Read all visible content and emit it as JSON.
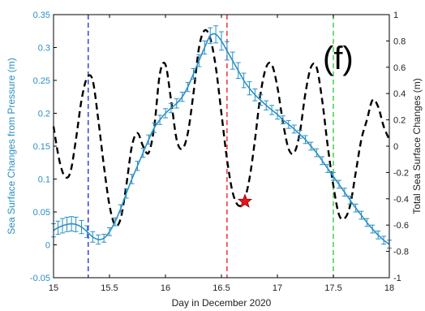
{
  "chart_data": {
    "type": "line",
    "panel_label": "(f)",
    "xlabel": "Day in December 2020",
    "ylabel_left": "Sea Surface Changes from Pressure (m)",
    "ylabel_right": "Total Sea Surface Changes (m)",
    "xlim": [
      15,
      18
    ],
    "ylim_left": [
      -0.05,
      0.35
    ],
    "ylim_right": [
      -1,
      1
    ],
    "x_ticks": [
      "15",
      "15.5",
      "16",
      "16.5",
      "17",
      "17.5",
      "18"
    ],
    "y_left_ticks": [
      "-0.05",
      "0",
      "0.05",
      "0.1",
      "0.15",
      "0.2",
      "0.25",
      "0.3",
      "0.35"
    ],
    "y_right_ticks": [
      "-1",
      "-0.8",
      "-0.6",
      "-0.4",
      "-0.2",
      "0",
      "0.2",
      "0.4",
      "0.6",
      "0.8",
      "1"
    ],
    "colors": {
      "pressure_series": "#2a8fc4",
      "total_series": "#000000",
      "marker": "#e8141b",
      "vline_blue": "#2222dd",
      "vline_red": "#e8141b",
      "vline_green": "#22cc22"
    },
    "vertical_lines": [
      {
        "x": 15.31,
        "color": "blue"
      },
      {
        "x": 16.55,
        "color": "red"
      },
      {
        "x": 17.5,
        "color": "green"
      }
    ],
    "marker": {
      "x": 16.71,
      "y_right": -0.42,
      "shape": "star"
    },
    "series": [
      {
        "axis": "left",
        "style": "solid-errorbars",
        "x": [
          15.0,
          15.04,
          15.08,
          15.12,
          15.16,
          15.2,
          15.25,
          15.3,
          15.35,
          15.4,
          15.45,
          15.5,
          15.55,
          15.6,
          15.65,
          15.7,
          15.75,
          15.8,
          15.85,
          15.9,
          15.95,
          16.0,
          16.05,
          16.1,
          16.15,
          16.2,
          16.25,
          16.3,
          16.35,
          16.4,
          16.45,
          16.5,
          16.55,
          16.6,
          16.65,
          16.7,
          16.75,
          16.8,
          16.85,
          16.9,
          16.95,
          17.0,
          17.05,
          17.1,
          17.15,
          17.2,
          17.25,
          17.3,
          17.35,
          17.4,
          17.45,
          17.5,
          17.55,
          17.6,
          17.65,
          17.7,
          17.75,
          17.8,
          17.85,
          17.9,
          17.95,
          18.0
        ],
        "y": [
          0.022,
          0.026,
          0.029,
          0.031,
          0.032,
          0.031,
          0.027,
          0.02,
          0.012,
          0.008,
          0.01,
          0.02,
          0.035,
          0.055,
          0.078,
          0.1,
          0.12,
          0.14,
          0.16,
          0.178,
          0.19,
          0.2,
          0.208,
          0.215,
          0.225,
          0.24,
          0.26,
          0.28,
          0.3,
          0.318,
          0.32,
          0.31,
          0.295,
          0.28,
          0.265,
          0.25,
          0.238,
          0.228,
          0.22,
          0.212,
          0.205,
          0.198,
          0.19,
          0.183,
          0.176,
          0.168,
          0.16,
          0.15,
          0.14,
          0.128,
          0.116,
          0.104,
          0.092,
          0.08,
          0.068,
          0.056,
          0.045,
          0.034,
          0.024,
          0.015,
          0.007,
          0.001
        ],
        "err": [
          0.01,
          0.01,
          0.011,
          0.011,
          0.011,
          0.011,
          0.01,
          0.009,
          0.008,
          0.007,
          0.006,
          0.006,
          0.006,
          0.006,
          0.007,
          0.007,
          0.007,
          0.007,
          0.007,
          0.007,
          0.007,
          0.007,
          0.007,
          0.007,
          0.007,
          0.007,
          0.008,
          0.009,
          0.01,
          0.012,
          0.013,
          0.014,
          0.014,
          0.013,
          0.012,
          0.011,
          0.01,
          0.009,
          0.008,
          0.007,
          0.007,
          0.007,
          0.006,
          0.006,
          0.006,
          0.006,
          0.006,
          0.006,
          0.006,
          0.006,
          0.006,
          0.006,
          0.006,
          0.006,
          0.006,
          0.006,
          0.006,
          0.006,
          0.006,
          0.006,
          0.006,
          0.006
        ]
      },
      {
        "axis": "right",
        "style": "dashed",
        "x": [
          15.0,
          15.05,
          15.1,
          15.15,
          15.2,
          15.25,
          15.3,
          15.35,
          15.4,
          15.45,
          15.5,
          15.55,
          15.6,
          15.65,
          15.7,
          15.75,
          15.8,
          15.85,
          15.9,
          15.95,
          16.0,
          16.05,
          16.1,
          16.15,
          16.2,
          16.25,
          16.3,
          16.35,
          16.4,
          16.45,
          16.5,
          16.55,
          16.6,
          16.65,
          16.7,
          16.75,
          16.8,
          16.85,
          16.9,
          16.95,
          17.0,
          17.05,
          17.1,
          17.15,
          17.2,
          17.25,
          17.3,
          17.35,
          17.4,
          17.45,
          17.5,
          17.55,
          17.6,
          17.65,
          17.7,
          17.75,
          17.8,
          17.85,
          17.9,
          17.95,
          18.0
        ],
        "y": [
          0.15,
          -0.1,
          -0.23,
          -0.2,
          0.05,
          0.35,
          0.52,
          0.5,
          0.2,
          -0.15,
          -0.45,
          -0.6,
          -0.55,
          -0.3,
          0.0,
          0.1,
          0.0,
          -0.05,
          0.15,
          0.55,
          0.62,
          0.35,
          0.05,
          -0.02,
          0.1,
          0.4,
          0.75,
          0.88,
          0.82,
          0.6,
          0.25,
          -0.1,
          -0.35,
          -0.45,
          -0.42,
          -0.25,
          0.05,
          0.4,
          0.6,
          0.62,
          0.45,
          0.18,
          -0.02,
          -0.05,
          0.1,
          0.4,
          0.6,
          0.6,
          0.35,
          0.0,
          -0.3,
          -0.52,
          -0.55,
          -0.45,
          -0.2,
          0.05,
          0.2,
          0.35,
          0.3,
          0.15,
          0.05
        ]
      }
    ]
  }
}
